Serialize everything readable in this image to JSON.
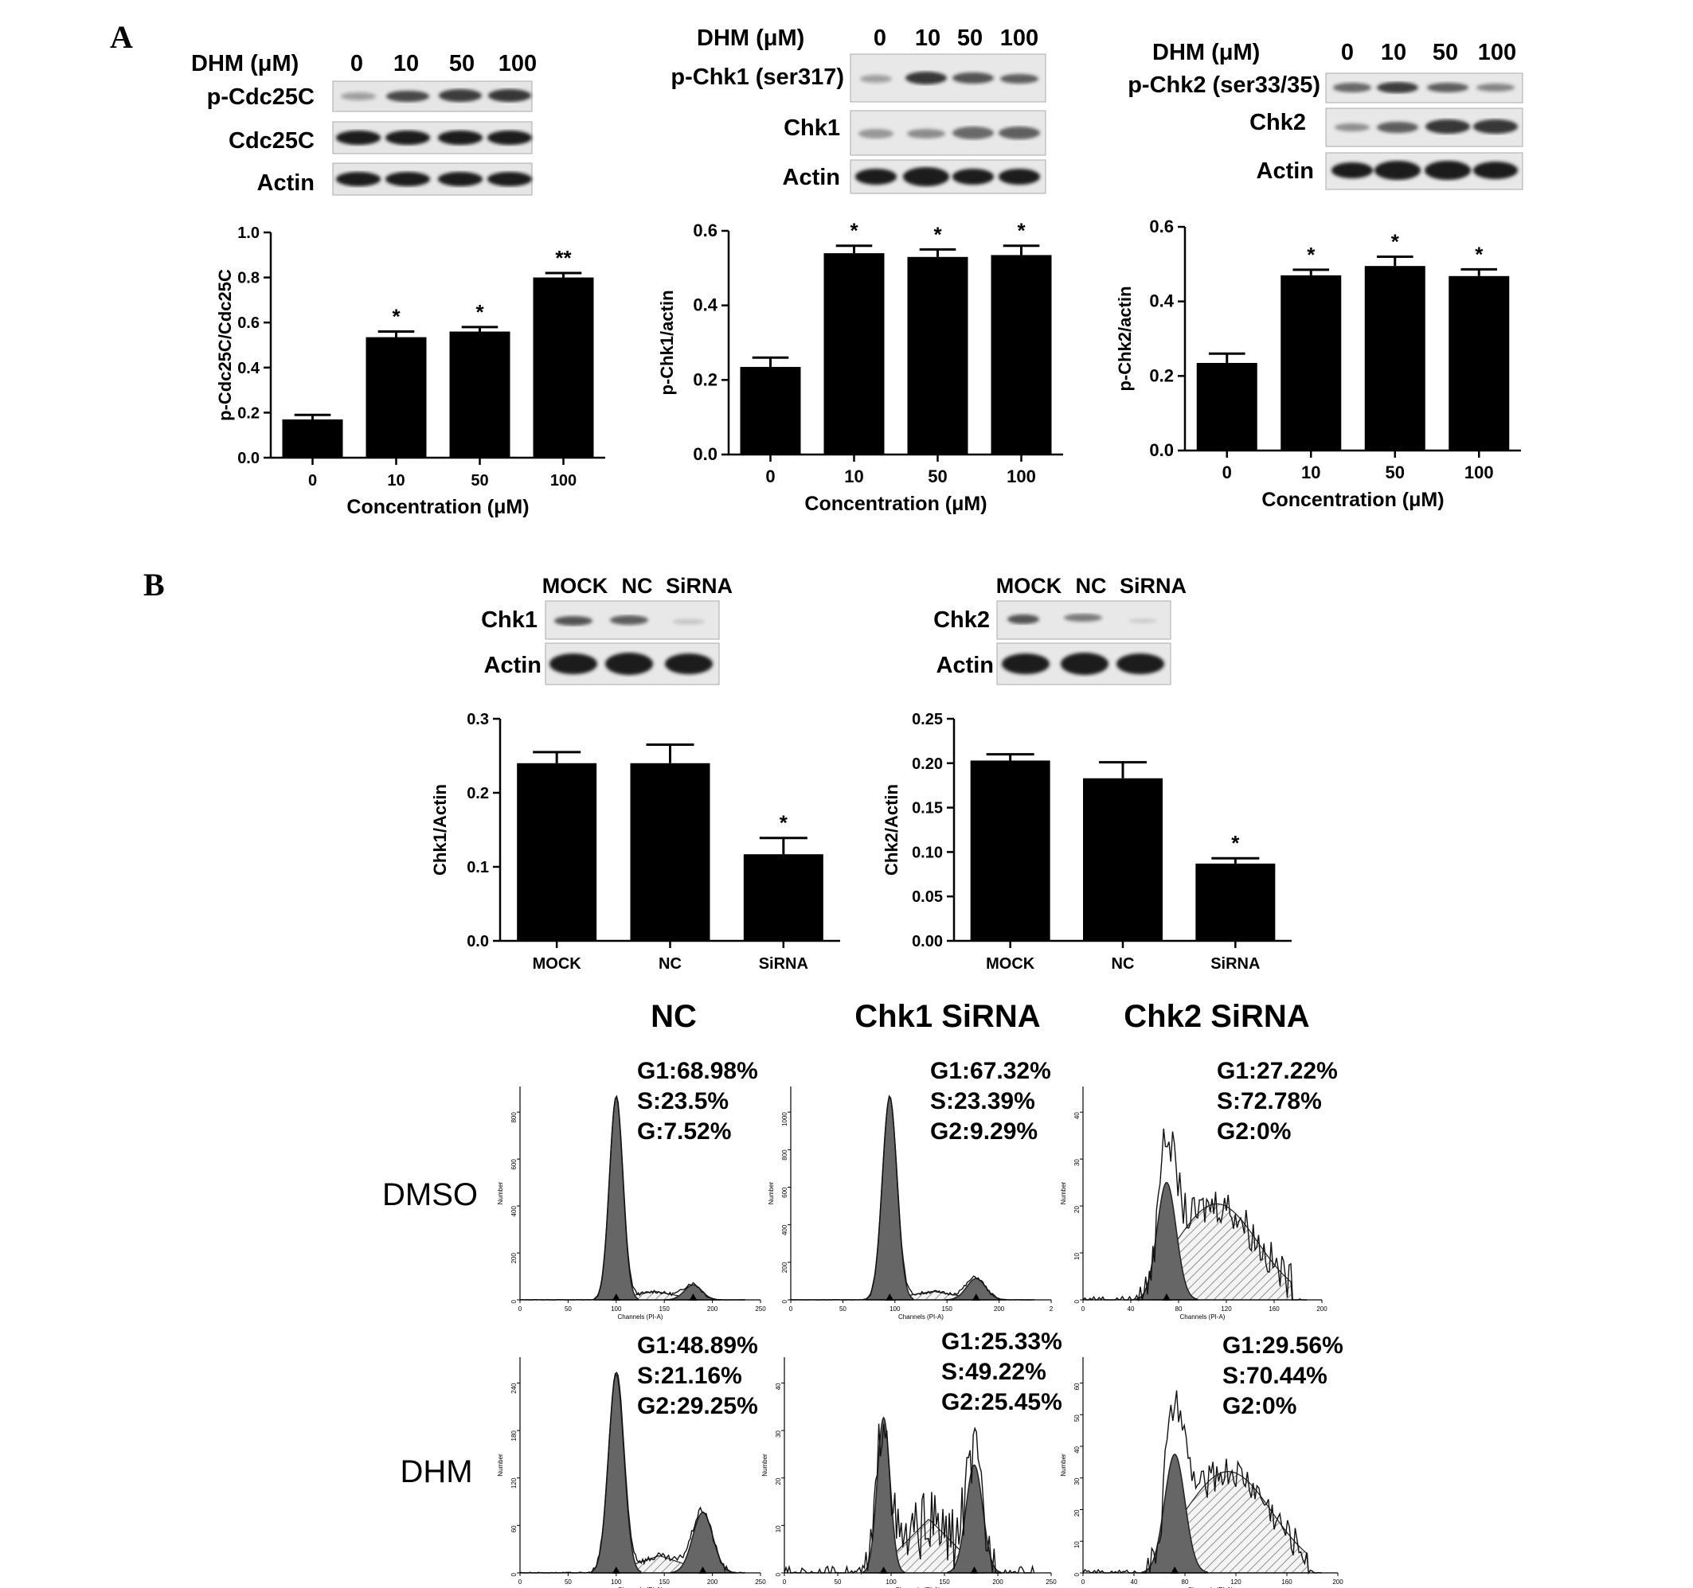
{
  "figure": {
    "panel_a": "A",
    "panel_b": "B"
  },
  "blots_a": [
    {
      "header_label": "DHM (μM)",
      "lanes": [
        "0",
        "10",
        "50",
        "100"
      ],
      "rows": [
        "p-Cdc25C",
        "Cdc25C",
        "Actin"
      ]
    },
    {
      "header_label": "DHM (μM)",
      "lanes": [
        "0",
        "10",
        "50",
        "100"
      ],
      "rows": [
        "p-Chk1 (ser317)",
        "Chk1",
        "Actin"
      ]
    },
    {
      "header_label": "DHM (μM)",
      "lanes": [
        "0",
        "10",
        "50",
        "100"
      ],
      "rows": [
        "p-Chk2 (ser33/35)",
        "Chk2",
        "Actin"
      ]
    }
  ],
  "blots_b": [
    {
      "lanes": [
        "MOCK",
        "NC",
        "SiRNA"
      ],
      "rows": [
        "Chk1",
        "Actin"
      ]
    },
    {
      "lanes": [
        "MOCK",
        "NC",
        "SiRNA"
      ],
      "rows": [
        "Chk2",
        "Actin"
      ]
    }
  ],
  "chart_data": [
    {
      "type": "bar",
      "categories": [
        "0",
        "10",
        "50",
        "100"
      ],
      "values": [
        0.17,
        0.535,
        0.56,
        0.8
      ],
      "errors": [
        0.02,
        0.025,
        0.02,
        0.02
      ],
      "significance": [
        "",
        "*",
        "*",
        "**"
      ],
      "xlabel": "Concentration (μM)",
      "ylabel": "p-Cdc25C/Cdc25C",
      "ylim": [
        0,
        1.0
      ],
      "yticks": [
        "0.0",
        "0.2",
        "0.4",
        "0.6",
        "0.8",
        "1.0"
      ]
    },
    {
      "type": "bar",
      "categories": [
        "0",
        "10",
        "50",
        "100"
      ],
      "values": [
        0.235,
        0.54,
        0.53,
        0.535
      ],
      "errors": [
        0.025,
        0.02,
        0.02,
        0.025
      ],
      "significance": [
        "",
        "*",
        "*",
        "*"
      ],
      "xlabel": "Concentration (μM)",
      "ylabel": "p-Chk1/actin",
      "ylim": [
        0,
        0.6
      ],
      "yticks": [
        "0.0",
        "0.2",
        "0.4",
        "0.6"
      ]
    },
    {
      "type": "bar",
      "categories": [
        "0",
        "10",
        "50",
        "100"
      ],
      "values": [
        0.235,
        0.47,
        0.495,
        0.468
      ],
      "errors": [
        0.025,
        0.015,
        0.025,
        0.018
      ],
      "significance": [
        "",
        "*",
        "*",
        "*"
      ],
      "xlabel": "Concentration (μM)",
      "ylabel": "p-Chk2/actin",
      "ylim": [
        0,
        0.6
      ],
      "yticks": [
        "0.0",
        "0.2",
        "0.4",
        "0.6"
      ]
    },
    {
      "type": "bar",
      "categories": [
        "MOCK",
        "NC",
        "SiRNA"
      ],
      "values": [
        0.24,
        0.24,
        0.117
      ],
      "errors": [
        0.015,
        0.025,
        0.022
      ],
      "significance": [
        "",
        "",
        "*"
      ],
      "xlabel": "",
      "ylabel": "Chk1/Actin",
      "ylim": [
        0,
        0.3
      ],
      "yticks": [
        "0.0",
        "0.1",
        "0.2",
        "0.3"
      ]
    },
    {
      "type": "bar",
      "categories": [
        "MOCK",
        "NC",
        "SiRNA"
      ],
      "values": [
        0.203,
        0.183,
        0.087
      ],
      "errors": [
        0.007,
        0.018,
        0.006
      ],
      "significance": [
        "",
        "",
        "*"
      ],
      "xlabel": "",
      "ylabel": "Chk2/Actin",
      "ylim": [
        0,
        0.25
      ],
      "yticks": [
        "0.00",
        "0.05",
        "0.10",
        "0.15",
        "0.20",
        "0.25"
      ]
    }
  ],
  "flow": {
    "columns": [
      "NC",
      "Chk1 SiRNA",
      "Chk2 SiRNA"
    ],
    "rows": [
      "DMSO",
      "DHM"
    ],
    "axis_x_label": "Channels (PI-A)",
    "axis_y_label": "Number",
    "histograms": [
      {
        "stats": [
          "G1:68.98%",
          "S:23.5%",
          "G:7.52%"
        ],
        "xticks": [
          "0",
          "50",
          "100",
          "150",
          "200",
          "250"
        ],
        "xmax": 250,
        "yticks": [
          "0",
          "200",
          "400",
          "600",
          "800"
        ],
        "ymax": 920,
        "g1_pos": 100,
        "g1_height": 0.95,
        "g1_width": 7,
        "g2_pos": 180,
        "g2_height": 0.07,
        "s_height": 0.04,
        "noise": 0.01
      },
      {
        "stats": [
          "G1:67.32%",
          "S:23.39%",
          "G2:9.29%"
        ],
        "xticks": [
          "0",
          "50",
          "100",
          "150",
          "200",
          "2"
        ],
        "xmax": 250,
        "yticks": [
          "0",
          "200",
          "400",
          "600",
          "800",
          "1000"
        ],
        "ymax": 1150,
        "g1_pos": 95,
        "g1_height": 0.95,
        "g1_width": 7,
        "g2_pos": 178,
        "g2_height": 0.1,
        "s_height": 0.04,
        "noise": 0.01
      },
      {
        "stats": [
          "G1:27.22%",
          "S:72.78%",
          "G2:0%"
        ],
        "xticks": [
          "0",
          "40",
          "80",
          "120",
          "160",
          "200"
        ],
        "xmax": 200,
        "yticks": [
          "0",
          "10",
          "20",
          "30",
          "40"
        ],
        "ymax": 48,
        "g1_pos": 70,
        "g1_height": 0.55,
        "g1_width": 8,
        "g2_pos": 0,
        "g2_height": 0,
        "s_height": 0.45,
        "noise": 0.12
      },
      {
        "stats": [
          "G1:48.89%",
          "S:21.16%",
          "G2:29.25%"
        ],
        "xticks": [
          "0",
          "50",
          "100",
          "150",
          "200",
          "250"
        ],
        "xmax": 250,
        "yticks": [
          "0",
          "60",
          "120",
          "180",
          "240"
        ],
        "ymax": 270,
        "g1_pos": 100,
        "g1_height": 0.92,
        "g1_width": 8,
        "g2_pos": 190,
        "g2_height": 0.28,
        "s_height": 0.08,
        "noise": 0.02
      },
      {
        "stats": [
          "G1:25.33%",
          "S:49.22%",
          "G2:25.45%"
        ],
        "xticks": [
          "0",
          "50",
          "100",
          "150",
          "200",
          "250"
        ],
        "xmax": 250,
        "yticks": [
          "0",
          "10",
          "20",
          "30",
          "40"
        ],
        "ymax": 50,
        "g1_pos": 93,
        "g1_height": 0.72,
        "g1_width": 6,
        "g2_pos": 178,
        "g2_height": 0.5,
        "s_height": 0.25,
        "noise": 0.2
      },
      {
        "stats": [
          "G1:29.56%",
          "S:70.44%",
          "G2:0%"
        ],
        "xticks": [
          "0",
          "40",
          "80",
          "120",
          "160",
          "200"
        ],
        "xmax": 200,
        "yticks": [
          "0",
          "10",
          "20",
          "30",
          "40",
          "50",
          "60"
        ],
        "ymax": 66,
        "g1_pos": 72,
        "g1_height": 0.55,
        "g1_width": 8,
        "g2_pos": 0,
        "g2_height": 0,
        "s_height": 0.47,
        "noise": 0.1
      }
    ]
  }
}
